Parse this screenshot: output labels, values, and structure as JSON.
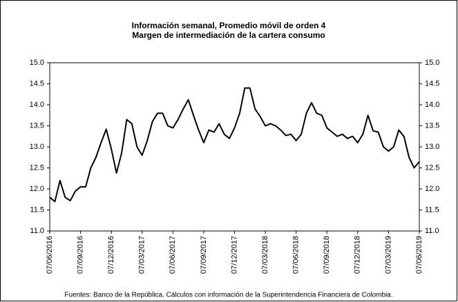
{
  "chart_data": {
    "type": "line",
    "title": "Información semanal, Promedio móvil de orden 4",
    "subtitle": "Margen de intermediación de la cartera consumo",
    "source": "Fuentes: Banco de la República. Cálculos con información de la Superintendencia Financiera de Colombia.",
    "categories": [
      "07/06/2016",
      null,
      null,
      null,
      null,
      null,
      "07/09/2016",
      null,
      null,
      null,
      null,
      null,
      "07/12/2016",
      null,
      null,
      null,
      null,
      null,
      "07/03/2017",
      null,
      null,
      null,
      null,
      null,
      "07/06/2017",
      null,
      null,
      null,
      null,
      null,
      "07/09/2017",
      null,
      null,
      null,
      null,
      null,
      "07/12/2017",
      null,
      null,
      null,
      null,
      null,
      "07/03/2018",
      null,
      null,
      null,
      null,
      null,
      "07/06/2018",
      null,
      null,
      null,
      null,
      null,
      "07/09/2018",
      null,
      null,
      null,
      null,
      null,
      "07/12/2018",
      null,
      null,
      null,
      null,
      null,
      "07/03/2019",
      null,
      null,
      null,
      null,
      null,
      "07/06/2019"
    ],
    "series": [
      {
        "color": "#000000",
        "values": [
          11.8,
          11.7,
          12.2,
          11.8,
          11.72,
          11.95,
          12.05,
          12.05,
          12.5,
          12.75,
          13.1,
          13.42,
          12.95,
          12.38,
          12.85,
          13.65,
          13.55,
          13.0,
          12.8,
          13.15,
          13.6,
          13.8,
          13.8,
          13.5,
          13.45,
          13.65,
          13.9,
          14.12,
          13.75,
          13.4,
          13.1,
          13.4,
          13.35,
          13.55,
          13.3,
          13.2,
          13.45,
          13.8,
          14.4,
          14.4,
          13.9,
          13.72,
          13.5,
          13.55,
          13.5,
          13.4,
          13.27,
          13.3,
          13.15,
          13.3,
          13.8,
          14.05,
          13.8,
          13.75,
          13.45,
          13.35,
          13.25,
          13.3,
          13.2,
          13.25,
          13.1,
          13.3,
          13.75,
          13.38,
          13.35,
          13.0,
          12.9,
          13.0,
          13.4,
          13.25,
          12.75,
          12.5,
          12.65
        ]
      }
    ],
    "ylim": [
      11.0,
      15.0
    ],
    "yticks": [
      {
        "value": 11,
        "label": "11.0"
      },
      {
        "value": 11.5,
        "label": "11.5"
      },
      {
        "value": 12,
        "label": "12.0"
      },
      {
        "value": 12.5,
        "label": "12.5"
      },
      {
        "value": 13,
        "label": "13.0"
      },
      {
        "value": 13.5,
        "label": "13.5"
      },
      {
        "value": 14,
        "label": "14.0"
      },
      {
        "value": 14.5,
        "label": "14.5"
      },
      {
        "value": 15,
        "label": "15.0"
      }
    ],
    "y2lim": [
      11.0,
      15.0
    ],
    "y2ticks": [
      {
        "value": 11,
        "label": "11.0"
      },
      {
        "value": 11.5,
        "label": "11.5"
      },
      {
        "value": 12,
        "label": "12.0"
      },
      {
        "value": 12.5,
        "label": "12.5"
      },
      {
        "value": 13,
        "label": "13.0"
      },
      {
        "value": 13.5,
        "label": "13.5"
      },
      {
        "value": 14,
        "label": "14.0"
      },
      {
        "value": 14.5,
        "label": "14.5"
      },
      {
        "value": 15,
        "label": "15.0"
      }
    ],
    "grid": false
  }
}
